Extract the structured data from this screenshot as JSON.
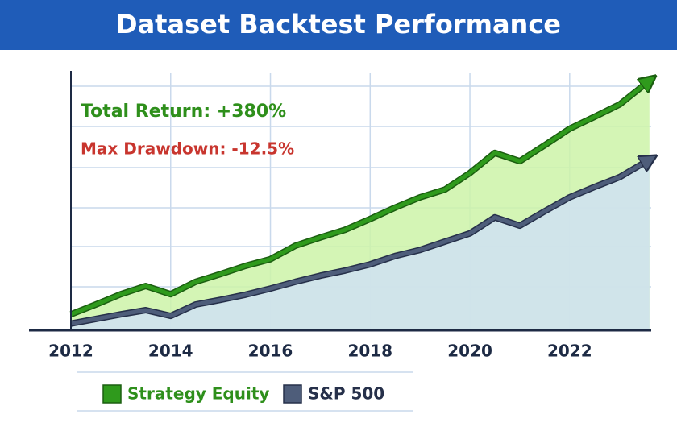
{
  "chart_data": {
    "type": "line",
    "title": "Dataset Backtest Performance",
    "annotations": [
      "Total Return: +380%",
      "Max Drawdown: -12.5%"
    ],
    "x": [
      2012,
      2012.5,
      2013,
      2013.5,
      2014,
      2014.5,
      2015,
      2015.5,
      2016,
      2016.5,
      2017,
      2017.5,
      2018,
      2018.5,
      2019,
      2019.5,
      2020,
      2020.5,
      2021,
      2021.5,
      2022,
      2022.5,
      2023,
      2023.6
    ],
    "xlim": [
      2012,
      2023.7
    ],
    "xticks": [
      2012,
      2014,
      2016,
      2018,
      2020,
      2022
    ],
    "ylim": [
      0,
      500
    ],
    "series": [
      {
        "name": "Strategy Equity",
        "color": "#2f9a1c",
        "values": [
          31,
          50,
          70,
          86,
          70,
          94,
          109,
          125,
          138,
          164,
          180,
          195,
          216,
          238,
          258,
          273,
          305,
          344,
          328,
          359,
          391,
          414,
          438,
          484
        ]
      },
      {
        "name": "S&P 500",
        "color": "#4e5d7a",
        "values": [
          13,
          22,
          31,
          39,
          28,
          50,
          59,
          69,
          81,
          94,
          106,
          116,
          128,
          144,
          156,
          172,
          188,
          219,
          203,
          231,
          258,
          278,
          297,
          331
        ]
      }
    ],
    "area_colors": [
      "#cdf3a8",
      "#cfe0f3"
    ],
    "grid": true
  }
}
